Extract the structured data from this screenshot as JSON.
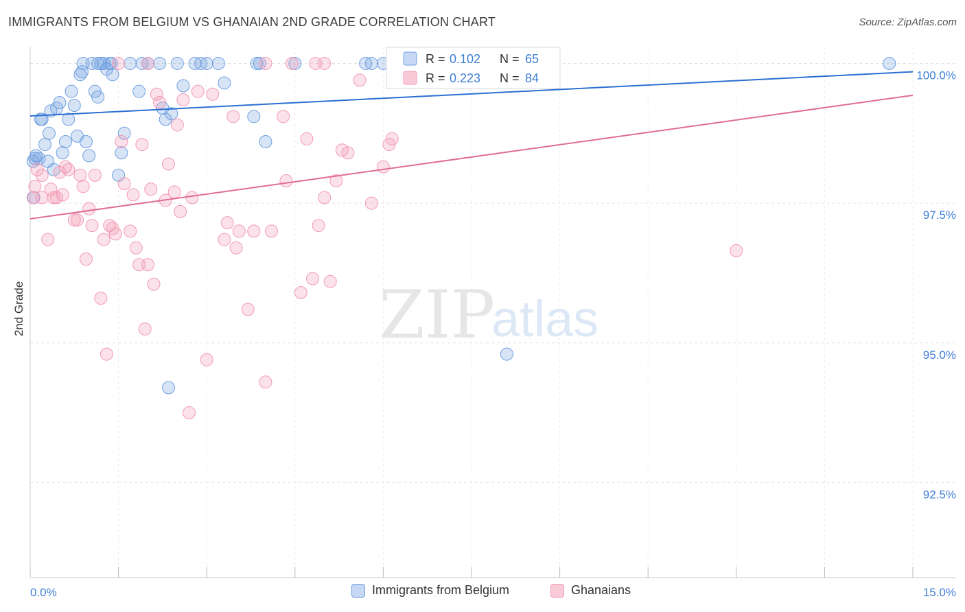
{
  "header": {
    "title": "IMMIGRANTS FROM BELGIUM VS GHANAIAN 2ND GRADE CORRELATION CHART",
    "source": "Source: ZipAtlas.com"
  },
  "watermark": {
    "zip": "ZIP",
    "atlas": "atlas"
  },
  "chart_data": {
    "type": "scatter",
    "title": "IMMIGRANTS FROM BELGIUM VS GHANAIAN 2ND GRADE CORRELATION CHART",
    "xlabel": "",
    "ylabel": "2nd Grade",
    "xlim": [
      0.0,
      15.0
    ],
    "ylim": [
      90.8,
      100.3
    ],
    "x_tick_labels": [
      "0.0%",
      "15.0%"
    ],
    "y_ticks": [
      100.0,
      97.5,
      95.0,
      92.5
    ],
    "y_tick_labels": [
      "100.0%",
      "97.5%",
      "95.0%",
      "92.5%"
    ],
    "grid": true,
    "legend_position": "top-center",
    "legend": [
      {
        "r_label": "R =",
        "r_value": "0.102",
        "n_label": "N =",
        "n_value": "65"
      },
      {
        "r_label": "R =",
        "r_value": "0.223",
        "n_label": "N =",
        "n_value": "84"
      }
    ],
    "series": [
      {
        "name": "Immigrants from Belgium",
        "color": "#6f9fe0",
        "line_color": "#2b6fd1",
        "trend": {
          "x": [
            0.0,
            15.0
          ],
          "y": [
            99.06,
            99.85
          ]
        },
        "points": [
          [
            0.05,
            98.25
          ],
          [
            0.08,
            98.3
          ],
          [
            0.1,
            98.35
          ],
          [
            0.15,
            98.3
          ],
          [
            0.18,
            99.0
          ],
          [
            0.2,
            99.0
          ],
          [
            0.25,
            98.55
          ],
          [
            0.3,
            98.25
          ],
          [
            0.32,
            98.75
          ],
          [
            0.35,
            99.15
          ],
          [
            0.4,
            98.1
          ],
          [
            0.45,
            99.2
          ],
          [
            0.5,
            99.3
          ],
          [
            0.55,
            98.4
          ],
          [
            0.6,
            98.6
          ],
          [
            0.65,
            99.0
          ],
          [
            0.7,
            99.5
          ],
          [
            0.75,
            99.25
          ],
          [
            0.8,
            98.7
          ],
          [
            0.85,
            99.8
          ],
          [
            0.88,
            99.85
          ],
          [
            0.9,
            100.0
          ],
          [
            0.95,
            98.6
          ],
          [
            1.0,
            98.35
          ],
          [
            1.05,
            100.0
          ],
          [
            1.1,
            99.5
          ],
          [
            1.15,
            99.4
          ],
          [
            1.2,
            100.0
          ],
          [
            1.25,
            100.0
          ],
          [
            1.3,
            99.9
          ],
          [
            1.35,
            100.0
          ],
          [
            1.38,
            100.0
          ],
          [
            1.4,
            99.8
          ],
          [
            1.5,
            98.0
          ],
          [
            1.55,
            98.4
          ],
          [
            1.6,
            98.75
          ],
          [
            1.7,
            100.0
          ],
          [
            1.85,
            99.5
          ],
          [
            1.9,
            100.0
          ],
          [
            2.0,
            100.0
          ],
          [
            2.2,
            100.0
          ],
          [
            2.25,
            99.2
          ],
          [
            2.3,
            99.0
          ],
          [
            2.4,
            99.1
          ],
          [
            2.5,
            100.0
          ],
          [
            2.6,
            99.6
          ],
          [
            2.8,
            100.0
          ],
          [
            2.9,
            100.0
          ],
          [
            3.2,
            100.0
          ],
          [
            3.3,
            99.65
          ],
          [
            3.8,
            99.05
          ],
          [
            3.85,
            100.0
          ],
          [
            3.9,
            100.0
          ],
          [
            4.0,
            98.6
          ],
          [
            5.7,
            100.0
          ],
          [
            5.8,
            100.0
          ],
          [
            6.0,
            100.0
          ],
          [
            6.2,
            100.0
          ],
          [
            8.1,
            94.8
          ],
          [
            2.35,
            94.2
          ],
          [
            14.6,
            100.0
          ],
          [
            0.06,
            97.6
          ],
          [
            4.5,
            100.0
          ],
          [
            3.0,
            100.0
          ],
          [
            1.15,
            100.0
          ]
        ]
      },
      {
        "name": "Ghanaians",
        "color": "#f29ab5",
        "line_color": "#e06c95",
        "trend": {
          "x": [
            0.0,
            15.0
          ],
          "y": [
            97.22,
            99.43
          ]
        },
        "points": [
          [
            0.05,
            97.6
          ],
          [
            0.08,
            97.8
          ],
          [
            0.12,
            98.1
          ],
          [
            0.2,
            98.0
          ],
          [
            0.3,
            96.85
          ],
          [
            0.35,
            97.75
          ],
          [
            0.4,
            97.6
          ],
          [
            0.45,
            97.6
          ],
          [
            0.5,
            98.05
          ],
          [
            0.55,
            97.65
          ],
          [
            0.6,
            98.15
          ],
          [
            0.65,
            98.1
          ],
          [
            0.75,
            97.2
          ],
          [
            0.8,
            97.2
          ],
          [
            0.85,
            98.0
          ],
          [
            0.9,
            97.8
          ],
          [
            0.95,
            96.5
          ],
          [
            1.0,
            97.4
          ],
          [
            1.05,
            97.1
          ],
          [
            1.1,
            98.0
          ],
          [
            1.2,
            95.8
          ],
          [
            1.25,
            96.85
          ],
          [
            1.3,
            94.8
          ],
          [
            1.35,
            97.1
          ],
          [
            1.4,
            97.05
          ],
          [
            1.45,
            96.95
          ],
          [
            1.55,
            98.6
          ],
          [
            1.6,
            97.85
          ],
          [
            1.7,
            97.0
          ],
          [
            1.75,
            97.65
          ],
          [
            1.8,
            96.7
          ],
          [
            1.85,
            96.4
          ],
          [
            1.9,
            98.55
          ],
          [
            1.95,
            95.25
          ],
          [
            2.0,
            96.4
          ],
          [
            2.05,
            97.75
          ],
          [
            2.1,
            96.05
          ],
          [
            2.15,
            99.45
          ],
          [
            2.2,
            99.3
          ],
          [
            2.3,
            97.55
          ],
          [
            2.35,
            98.2
          ],
          [
            2.45,
            97.7
          ],
          [
            2.5,
            98.9
          ],
          [
            2.55,
            97.35
          ],
          [
            2.6,
            99.35
          ],
          [
            2.7,
            93.75
          ],
          [
            2.75,
            97.6
          ],
          [
            2.85,
            99.5
          ],
          [
            3.0,
            94.7
          ],
          [
            3.1,
            99.45
          ],
          [
            3.3,
            96.85
          ],
          [
            3.35,
            97.15
          ],
          [
            3.45,
            99.05
          ],
          [
            3.5,
            96.7
          ],
          [
            3.55,
            97.0
          ],
          [
            3.7,
            95.6
          ],
          [
            3.8,
            97.0
          ],
          [
            4.0,
            94.3
          ],
          [
            4.1,
            97.0
          ],
          [
            4.3,
            99.05
          ],
          [
            4.35,
            97.9
          ],
          [
            4.45,
            100.0
          ],
          [
            4.6,
            95.9
          ],
          [
            4.7,
            98.65
          ],
          [
            4.8,
            96.15
          ],
          [
            4.85,
            100.0
          ],
          [
            4.9,
            97.1
          ],
          [
            5.0,
            97.6
          ],
          [
            5.1,
            96.1
          ],
          [
            5.2,
            97.9
          ],
          [
            5.3,
            98.45
          ],
          [
            5.4,
            98.4
          ],
          [
            5.6,
            99.7
          ],
          [
            5.8,
            97.5
          ],
          [
            6.0,
            98.15
          ],
          [
            6.1,
            98.55
          ],
          [
            6.15,
            98.65
          ],
          [
            7.2,
            100.0
          ],
          [
            12.0,
            96.65
          ],
          [
            4.0,
            100.0
          ],
          [
            5.0,
            100.0
          ],
          [
            2.0,
            100.0
          ],
          [
            1.5,
            100.0
          ],
          [
            0.2,
            97.6
          ]
        ]
      }
    ]
  },
  "legend_bottom": {
    "items": [
      {
        "label": "Immigrants from Belgium",
        "fill": "#c6d8f4",
        "stroke": "#6f9fe0"
      },
      {
        "label": "Ghanaians",
        "fill": "#f9cad8",
        "stroke": "#f29ab5"
      }
    ]
  },
  "colors": {
    "tick_label": "#3f7fd6",
    "grid": "#e3e3e3",
    "axis": "#cccccc"
  }
}
